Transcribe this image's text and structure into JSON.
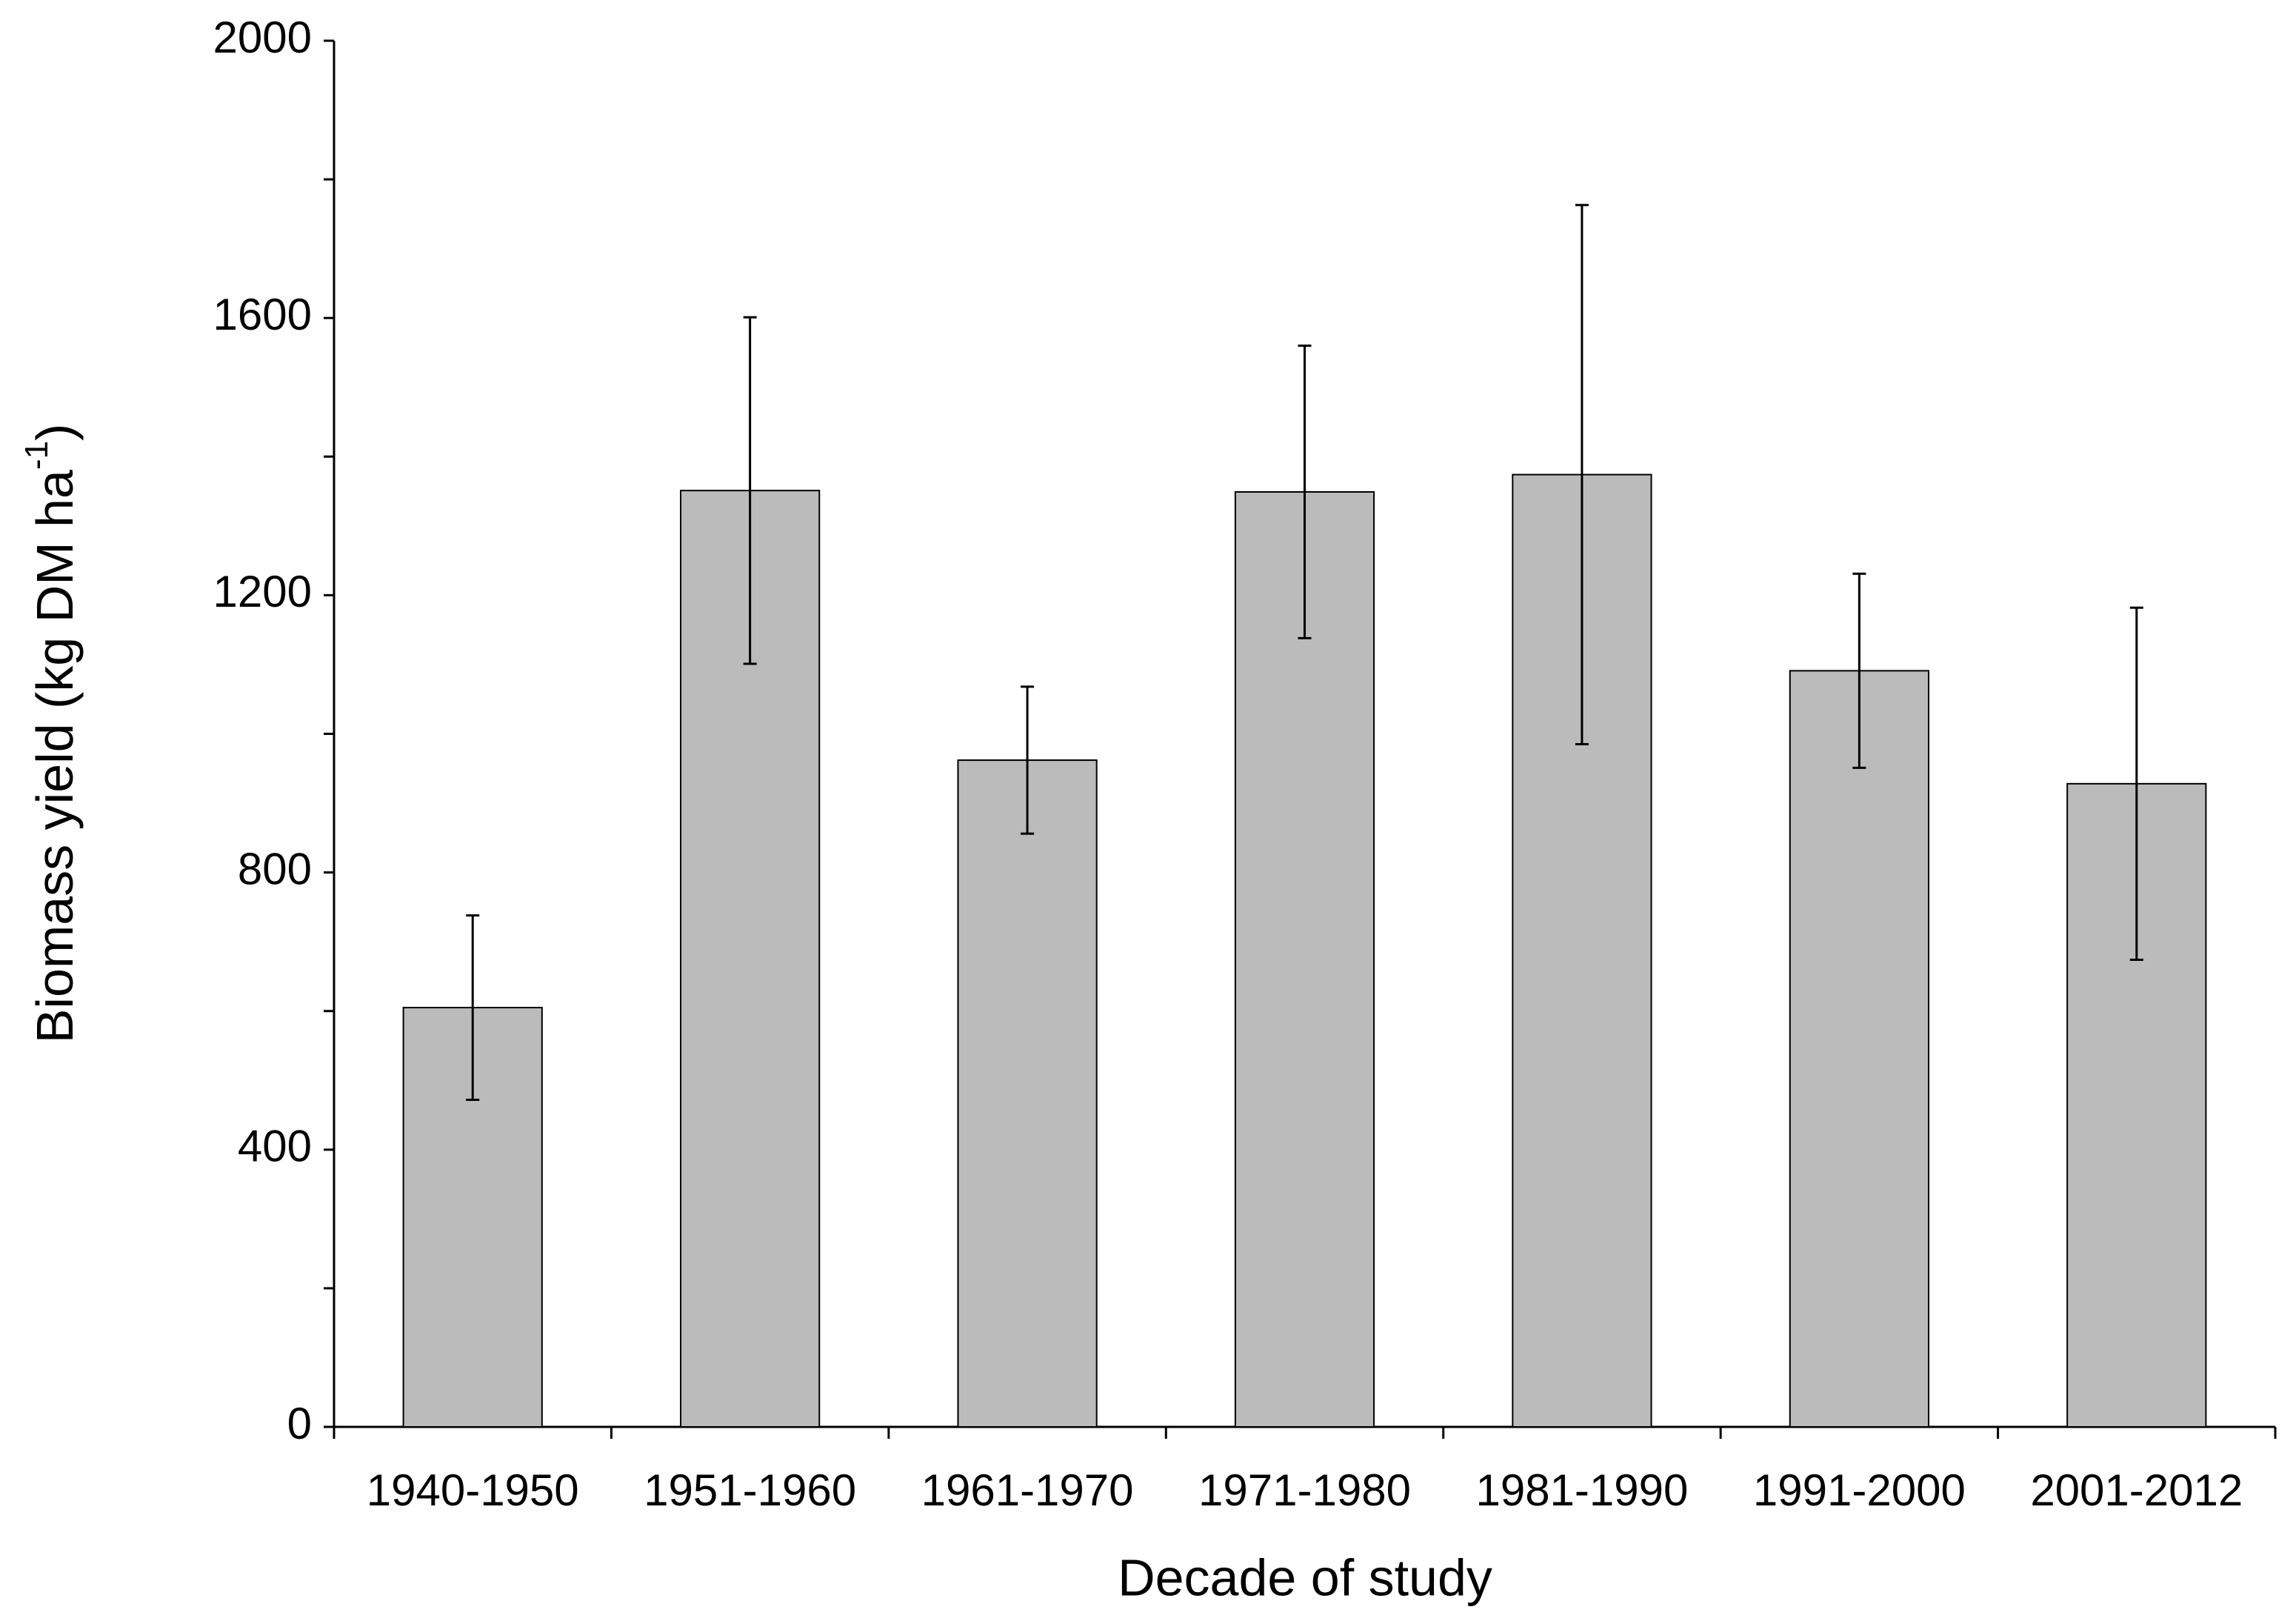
{
  "chart_data": {
    "type": "bar",
    "x_label": "Decade of study",
    "y_label": [
      "Biomass yield (kg DM ha",
      "-1",
      ")"
    ],
    "categories": [
      "1940-1950",
      "1951-1960",
      "1961-1970",
      "1971-1980",
      "1981-1990",
      "1991-2000",
      "2001-2012"
    ],
    "values": [
      605,
      1351,
      962,
      1349,
      1374,
      1091,
      928
    ],
    "errors": [
      133,
      250,
      106,
      211,
      389,
      140,
      254
    ],
    "color": "#bbbbbb",
    "ylim": [
      0,
      2000
    ],
    "yticks": [
      0,
      400,
      800,
      1200,
      1600,
      2000
    ],
    "minor_yticks": [
      200,
      600,
      1000,
      1400,
      1800
    ],
    "grid": false
  }
}
